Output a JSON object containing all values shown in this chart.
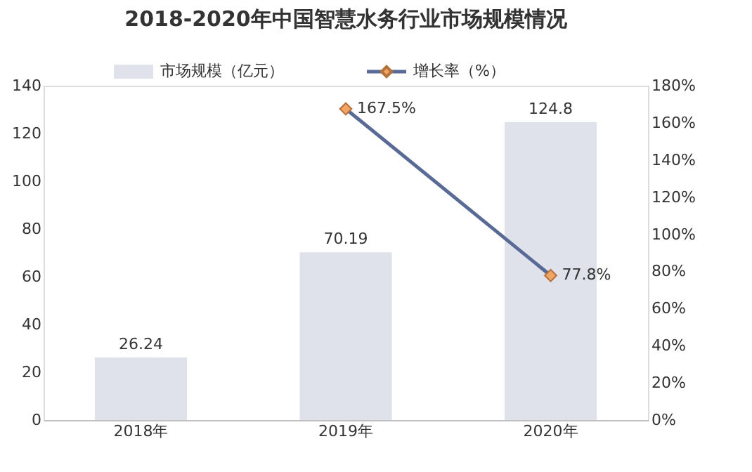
{
  "chart_data": {
    "type": "bar",
    "title": "2018-2020年中国智慧水务行业市场规模情况",
    "categories": [
      "2018年",
      "2019年",
      "2020年"
    ],
    "series": [
      {
        "name": "市场规模（亿元）",
        "type": "bar",
        "color": "#dfe2ea",
        "values": [
          26.24,
          70.19,
          124.8
        ]
      },
      {
        "name": "增长率（%）",
        "type": "line",
        "axis": "y2",
        "color": "#5a6a96",
        "values": [
          null,
          167.5,
          77.8
        ],
        "value_labels": [
          null,
          "167.5%",
          "77.8%"
        ]
      }
    ],
    "data_labels": true,
    "marker": "diamond",
    "legend": "top",
    "grid": false,
    "ylim": [
      0,
      140
    ],
    "yticks": [
      0,
      20,
      40,
      60,
      80,
      100,
      120,
      140
    ],
    "y2lim": [
      0,
      180
    ],
    "y2ticks": [
      {
        "value": 0,
        "label": "0%"
      },
      {
        "value": 20,
        "label": "20%"
      },
      {
        "value": 40,
        "label": "40%"
      },
      {
        "value": 60,
        "label": "60%"
      },
      {
        "value": 80,
        "label": "80%"
      },
      {
        "value": 100,
        "label": "100%"
      },
      {
        "value": 120,
        "label": "120%"
      },
      {
        "value": 140,
        "label": "140%"
      },
      {
        "value": 160,
        "label": "160%"
      },
      {
        "value": 180,
        "label": "180%"
      }
    ]
  }
}
